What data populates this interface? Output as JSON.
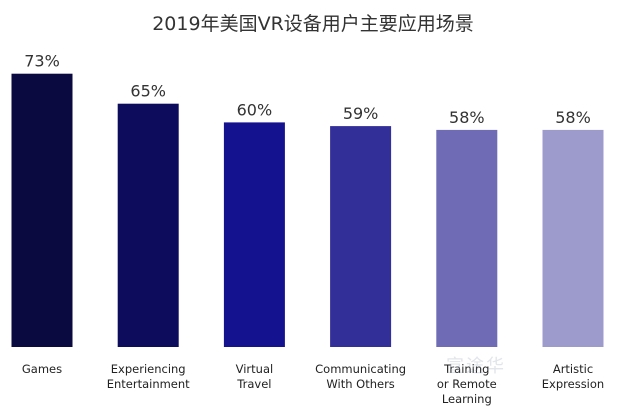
{
  "chart_data": {
    "type": "bar",
    "title": "2019年美国VR设备用户主要应用场景",
    "categories": [
      [
        "Games"
      ],
      [
        "Experiencing",
        "Entertainment"
      ],
      [
        "Virtual",
        "Travel"
      ],
      [
        "Communicating",
        "With Others"
      ],
      [
        "Training",
        "or Remote",
        "Learning"
      ],
      [
        "Artistic",
        "Expression"
      ]
    ],
    "values": [
      73,
      65,
      60,
      59,
      58,
      58
    ],
    "value_labels": [
      "73%",
      "65%",
      "60%",
      "59%",
      "58%",
      "58%"
    ],
    "colors": [
      "#0b0a40",
      "#0d0b5c",
      "#14128e",
      "#332f99",
      "#6f6cb5",
      "#9d9bcb"
    ],
    "ylim": [
      0,
      80
    ],
    "xlabel": "",
    "ylabel": "",
    "grid": false
  },
  "watermark": "宣途华"
}
